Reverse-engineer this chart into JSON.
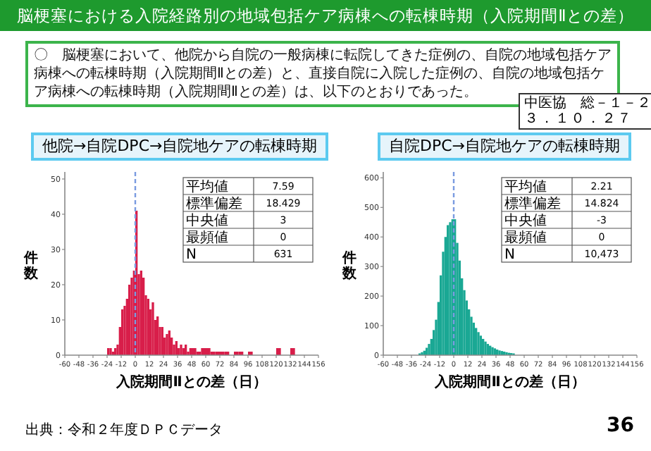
{
  "chart_data": [
    {
      "type": "other",
      "title": "脳梗塞における入院経路別の地域包括ケア病棟への転棟時期（入院期間Ⅱとの差）",
      "subtitle": "〇　脳梗塞において、他院から自院の一般病棟に転院してきた症例の、自院の地域包括ケア病棟への転棟時期（入院期間Ⅱとの差）と、直接自院に入院した症例の、自院の地域包括ケア病棟への転棟時期（入院期間Ⅱとの差）は、以下のとおりであった。",
      "annotations": [
        "中医協　総－１－２",
        "３．１０．２７",
        "出典：令和２年度ＤＰＣデータ",
        "36"
      ]
    },
    {
      "type": "histogram",
      "title": "他院→自院DPC→自院地ケアの転棟時期",
      "xlabel": "入院期間Ⅱとの差（日）",
      "ylabel": "件数",
      "color": "#d81e4a",
      "xlim": [
        -60,
        156
      ],
      "xticks": [
        -60,
        -48,
        -36,
        -24,
        -12,
        0,
        12,
        24,
        36,
        48,
        60,
        72,
        84,
        96,
        108,
        120,
        132,
        144,
        156
      ],
      "ylim": [
        0,
        52
      ],
      "yticks": [
        0,
        10,
        20,
        30,
        40,
        50
      ],
      "ref_lines": [
        {
          "axis": "x",
          "value": 0,
          "color": "#7a9be0",
          "line_style": "dashed"
        }
      ],
      "annotations": [
        "平均値",
        "7.59",
        "標準偏差",
        "18.429",
        "中央値",
        "3",
        "最頻値",
        "0",
        "N",
        "631"
      ],
      "bins": [
        -24,
        -22,
        -20,
        -18,
        -16,
        -14,
        -12,
        -10,
        -8,
        -6,
        -4,
        -2,
        0,
        2,
        4,
        6,
        8,
        10,
        12,
        14,
        16,
        18,
        20,
        22,
        24,
        26,
        28,
        30,
        32,
        34,
        36,
        38,
        40,
        42,
        44,
        46,
        48,
        52,
        56,
        60,
        64,
        68,
        72,
        76,
        80,
        84,
        88,
        92,
        96,
        100,
        120,
        124,
        132,
        136
      ],
      "values": [
        2,
        2,
        1,
        2,
        3,
        8,
        13,
        14,
        16,
        20,
        22,
        24,
        41,
        23,
        24,
        22,
        17,
        16,
        13,
        15,
        10,
        11,
        8,
        8,
        5,
        6,
        7,
        5,
        3,
        4,
        2,
        3,
        2,
        3,
        1,
        2,
        2,
        1,
        2,
        2,
        1,
        1,
        1,
        1,
        0,
        1,
        1,
        0,
        1,
        0,
        2,
        0,
        2
      ]
    },
    {
      "type": "histogram",
      "title": "自院DPC→自院地ケアの転棟時期",
      "xlabel": "入院期間Ⅱとの差（日）",
      "ylabel": "件数",
      "color": "#1aa894",
      "xlim": [
        -60,
        156
      ],
      "xticks": [
        -60,
        -48,
        -36,
        -24,
        -12,
        0,
        12,
        24,
        36,
        48,
        60,
        72,
        84,
        96,
        108,
        120,
        132,
        144,
        156
      ],
      "ylim": [
        0,
        620
      ],
      "yticks": [
        0,
        100,
        200,
        300,
        400,
        500,
        600
      ],
      "ref_lines": [
        {
          "axis": "x",
          "value": 0,
          "color": "#7a9be0",
          "line_style": "dashed"
        }
      ],
      "annotations": [
        "平均値",
        "2.21",
        "標準偏差",
        "14.824",
        "中央値",
        "-3",
        "最頻値",
        "0",
        "N",
        "10,473"
      ],
      "bins": [
        -30,
        -28,
        -26,
        -24,
        -22,
        -20,
        -18,
        -16,
        -14,
        -12,
        -10,
        -8,
        -6,
        -4,
        -2,
        0,
        2,
        4,
        6,
        8,
        10,
        12,
        14,
        16,
        18,
        20,
        22,
        24,
        26,
        28,
        30,
        32,
        34,
        36,
        38,
        40,
        42,
        44,
        46,
        48,
        50,
        52
      ],
      "values": [
        6,
        10,
        15,
        25,
        38,
        55,
        85,
        120,
        180,
        270,
        350,
        400,
        440,
        450,
        460,
        460,
        380,
        320,
        260,
        220,
        185,
        155,
        130,
        110,
        92,
        78,
        66,
        55,
        46,
        38,
        32,
        27,
        23,
        19,
        16,
        14,
        12,
        10,
        8,
        7,
        6
      ]
    }
  ]
}
